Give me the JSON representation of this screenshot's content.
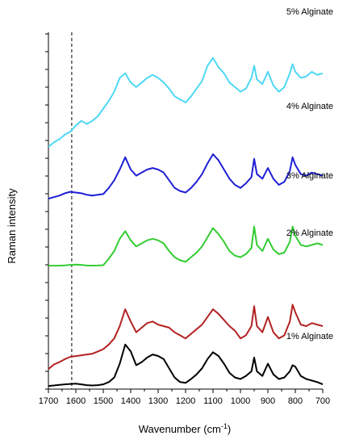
{
  "chart_data": {
    "type": "line",
    "title": "",
    "xlabel_main": "Wavenumber (cm",
    "xlabel_sup": "-1",
    "xlabel_close": ")",
    "ylabel": "Raman intensity",
    "xlim": [
      1700,
      700
    ],
    "x_reversed": true,
    "x_ticks": [
      1700,
      1600,
      1500,
      1400,
      1300,
      1200,
      1100,
      1000,
      900,
      800,
      700
    ],
    "y_ticks_labeled": false,
    "reference_line_x": 1615,
    "grid": false,
    "legend": "inline labels",
    "x": [
      1700,
      1680,
      1660,
      1640,
      1620,
      1600,
      1580,
      1560,
      1540,
      1520,
      1500,
      1480,
      1460,
      1440,
      1420,
      1400,
      1380,
      1360,
      1340,
      1320,
      1300,
      1280,
      1260,
      1240,
      1220,
      1200,
      1180,
      1160,
      1140,
      1120,
      1100,
      1080,
      1060,
      1040,
      1020,
      1000,
      980,
      960,
      950,
      940,
      920,
      900,
      880,
      860,
      840,
      820,
      810,
      800,
      780,
      760,
      740,
      720,
      700
    ],
    "series": [
      {
        "name": "1% Alginate",
        "color": "#000000",
        "values": [
          0.05,
          0.08,
          0.12,
          0.15,
          0.18,
          0.2,
          0.15,
          0.1,
          0.08,
          0.1,
          0.15,
          0.3,
          0.6,
          1.5,
          2.75,
          2.3,
          1.4,
          1.6,
          1.9,
          2.1,
          2.0,
          1.8,
          1.2,
          0.6,
          0.3,
          0.25,
          0.5,
          0.8,
          1.2,
          1.8,
          2.25,
          2.0,
          1.5,
          0.9,
          0.6,
          0.5,
          0.7,
          1.0,
          1.9,
          1.0,
          0.7,
          1.5,
          0.8,
          0.5,
          0.6,
          1.0,
          1.4,
          1.3,
          0.7,
          0.5,
          0.4,
          0.3,
          0.15
        ]
      },
      {
        "name": "2% Alginate",
        "color": "#b22222",
        "values": [
          0.2,
          0.5,
          0.65,
          0.85,
          1.0,
          1.05,
          1.1,
          1.15,
          1.2,
          1.35,
          1.5,
          1.8,
          2.2,
          3.0,
          4.1,
          3.3,
          2.6,
          2.9,
          3.2,
          3.3,
          3.1,
          3.0,
          2.9,
          2.6,
          2.4,
          2.2,
          2.5,
          2.8,
          3.1,
          3.6,
          4.1,
          3.8,
          3.4,
          3.0,
          2.7,
          2.2,
          2.4,
          3.0,
          4.3,
          3.0,
          2.6,
          3.6,
          2.6,
          2.2,
          2.4,
          3.3,
          4.4,
          3.9,
          3.1,
          3.0,
          3.2,
          3.1,
          3.0
        ]
      },
      {
        "name": "3% Alginate",
        "color": "#33cc33",
        "values": [
          0.05,
          0.05,
          0.05,
          0.07,
          0.1,
          0.12,
          0.1,
          0.06,
          0.05,
          0.06,
          0.08,
          0.5,
          1.0,
          1.8,
          2.3,
          1.7,
          1.3,
          1.5,
          1.7,
          1.8,
          1.7,
          1.5,
          1.0,
          0.6,
          0.4,
          0.3,
          0.6,
          0.9,
          1.3,
          1.9,
          2.5,
          2.1,
          1.6,
          1.0,
          0.7,
          0.6,
          0.8,
          1.2,
          2.6,
          1.4,
          1.0,
          1.8,
          1.1,
          0.8,
          0.9,
          1.6,
          2.6,
          2.0,
          1.4,
          1.3,
          1.4,
          1.5,
          1.4
        ]
      },
      {
        "name": "4% Alginate",
        "color": "#1f1fd6",
        "values": [
          0.1,
          0.2,
          0.3,
          0.45,
          0.55,
          0.5,
          0.45,
          0.35,
          0.3,
          0.35,
          0.4,
          0.8,
          1.3,
          2.0,
          2.8,
          2.0,
          1.6,
          1.8,
          2.0,
          2.1,
          2.0,
          1.8,
          1.3,
          0.8,
          0.6,
          0.5,
          0.8,
          1.2,
          1.7,
          2.4,
          3.0,
          2.6,
          2.0,
          1.4,
          1.0,
          0.8,
          1.1,
          1.5,
          2.7,
          1.7,
          1.4,
          2.1,
          1.4,
          1.0,
          1.2,
          1.9,
          2.8,
          2.3,
          1.7,
          1.6,
          1.8,
          1.7,
          1.6
        ]
      },
      {
        "name": "5% Alginate",
        "color": "#4fd8f4",
        "values": [
          0.0,
          0.3,
          0.5,
          0.8,
          1.0,
          1.4,
          1.7,
          1.5,
          1.7,
          2.0,
          2.5,
          3.0,
          3.6,
          4.5,
          4.8,
          4.2,
          3.9,
          4.2,
          4.5,
          4.7,
          4.5,
          4.2,
          3.8,
          3.3,
          3.1,
          2.9,
          3.3,
          3.8,
          4.3,
          5.3,
          5.8,
          5.2,
          4.8,
          4.2,
          3.9,
          3.6,
          3.8,
          4.5,
          5.3,
          4.4,
          4.1,
          4.9,
          4.0,
          3.6,
          3.9,
          4.8,
          5.4,
          4.9,
          4.5,
          4.6,
          4.9,
          4.7,
          4.8
        ]
      }
    ]
  }
}
